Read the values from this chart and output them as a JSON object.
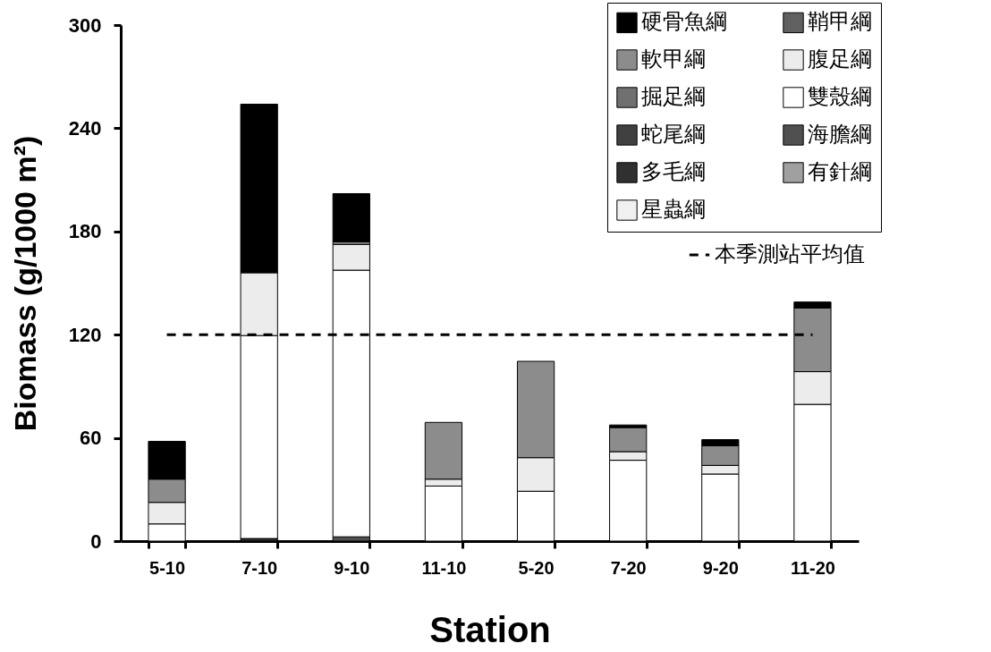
{
  "chart_data": {
    "type": "bar",
    "stacked": true,
    "xlabel": "Station",
    "ylabel": "Biomass (g/1000 m²)",
    "categories": [
      "5-10",
      "7-10",
      "9-10",
      "11-10",
      "5-20",
      "7-20",
      "9-20",
      "11-20"
    ],
    "ylim": [
      0,
      300
    ],
    "yticks": [
      0,
      60,
      120,
      180,
      240,
      300
    ],
    "grid": false,
    "legend": "top right",
    "series": [
      {
        "name": "星蟲綱",
        "color": "#f0f0f0",
        "values": [
          0,
          0,
          0,
          0,
          0,
          0,
          0,
          0
        ]
      },
      {
        "name": "有針綱",
        "color": "#a0a0a0",
        "values": [
          0,
          0,
          0,
          0,
          0,
          0,
          0,
          0
        ]
      },
      {
        "name": "多毛綱",
        "color": "#303030",
        "values": [
          0,
          1.5,
          0,
          0,
          0,
          0,
          0,
          0
        ]
      },
      {
        "name": "海膽綱",
        "color": "#505050",
        "values": [
          0,
          0,
          2.5,
          0,
          0,
          0,
          0,
          0
        ]
      },
      {
        "name": "蛇尾綱",
        "color": "#404040",
        "values": [
          0,
          0,
          0,
          0,
          0,
          0,
          0,
          0
        ]
      },
      {
        "name": "雙殼綱",
        "color": "#ffffff",
        "values": [
          10,
          118,
          155,
          32,
          29,
          47,
          39,
          79.5
        ]
      },
      {
        "name": "掘足綱",
        "color": "#707070",
        "values": [
          0,
          0,
          0,
          0,
          0,
          0,
          0,
          0
        ]
      },
      {
        "name": "腹足綱",
        "color": "#ececec",
        "values": [
          12.5,
          36.5,
          15,
          4,
          19.5,
          5,
          5,
          19
        ]
      },
      {
        "name": "軟甲綱",
        "color": "#8c8c8c",
        "values": [
          13.5,
          0,
          1.5,
          33,
          56,
          14,
          11.5,
          37
        ]
      },
      {
        "name": "鞘甲綱",
        "color": "#606060",
        "values": [
          0,
          0,
          0,
          0,
          0,
          0,
          0,
          0
        ]
      },
      {
        "name": "硬骨魚綱",
        "color": "#000000",
        "values": [
          22,
          98,
          28,
          0,
          0,
          1.5,
          3.5,
          3.5
        ]
      }
    ],
    "ref_lines": [
      {
        "axis": "y",
        "value": 120,
        "label": "本季測站平均值",
        "color": "#000000",
        "line_style": "dashed"
      }
    ]
  }
}
